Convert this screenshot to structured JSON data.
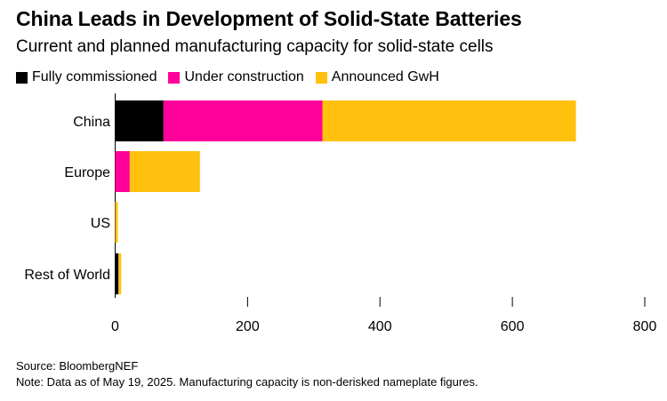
{
  "title": "China Leads in Development of Solid-State Batteries",
  "subtitle": "Current and planned manufacturing capacity for solid-state cells",
  "legend": {
    "fully_commissioned": "Fully commissioned",
    "under_construction": "Under construction",
    "announced": "Announced GwH"
  },
  "colors": {
    "fully_commissioned": "#000000",
    "under_construction": "#ff0099",
    "announced": "#ffc10e",
    "axis": "#000000"
  },
  "chart_data": {
    "type": "bar",
    "orientation": "horizontal",
    "stacked": true,
    "categories": [
      "China",
      "Europe",
      "US",
      "Rest of World"
    ],
    "series": [
      {
        "name": "Fully commissioned",
        "values": [
          73,
          0,
          0,
          5
        ]
      },
      {
        "name": "Under construction",
        "values": [
          240,
          22,
          0,
          0
        ]
      },
      {
        "name": "Announced GwH",
        "values": [
          383,
          106,
          4,
          4
        ]
      }
    ],
    "xlim": [
      0,
      800
    ],
    "xticks": [
      0,
      200,
      400,
      600,
      800
    ],
    "grid": false,
    "legend_position": "top-left"
  },
  "source": "Source: BloombergNEF",
  "note": "Note: Data as of May 19, 2025. Manufacturing capacity is non-derisked nameplate figures."
}
